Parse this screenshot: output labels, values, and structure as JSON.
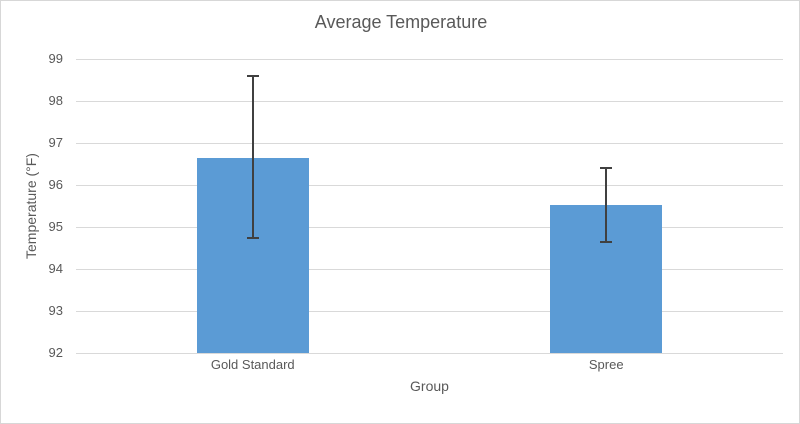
{
  "chart_title": "Average Temperature",
  "colors": {
    "bar": "#5B9BD5",
    "gridline": "#D9D9D9",
    "axis_line": "#D9D9D9",
    "error_bar": "#404040",
    "text": "#595959",
    "chart_border": "#D7D7D7",
    "background": "#FFFFFF"
  },
  "chart_data": {
    "type": "bar",
    "title": "Average Temperature",
    "xlabel": "Group",
    "ylabel": "Temperature (°F)",
    "categories": [
      "Gold Standard",
      "Spree"
    ],
    "values": [
      96.65,
      95.53
    ],
    "error_bars": {
      "upper": [
        98.6,
        96.4
      ],
      "lower": [
        94.75,
        94.65
      ]
    },
    "ylim": [
      92,
      99
    ],
    "yticks": [
      92,
      93,
      94,
      95,
      96,
      97,
      98,
      99
    ],
    "grid": true,
    "legend": false
  }
}
